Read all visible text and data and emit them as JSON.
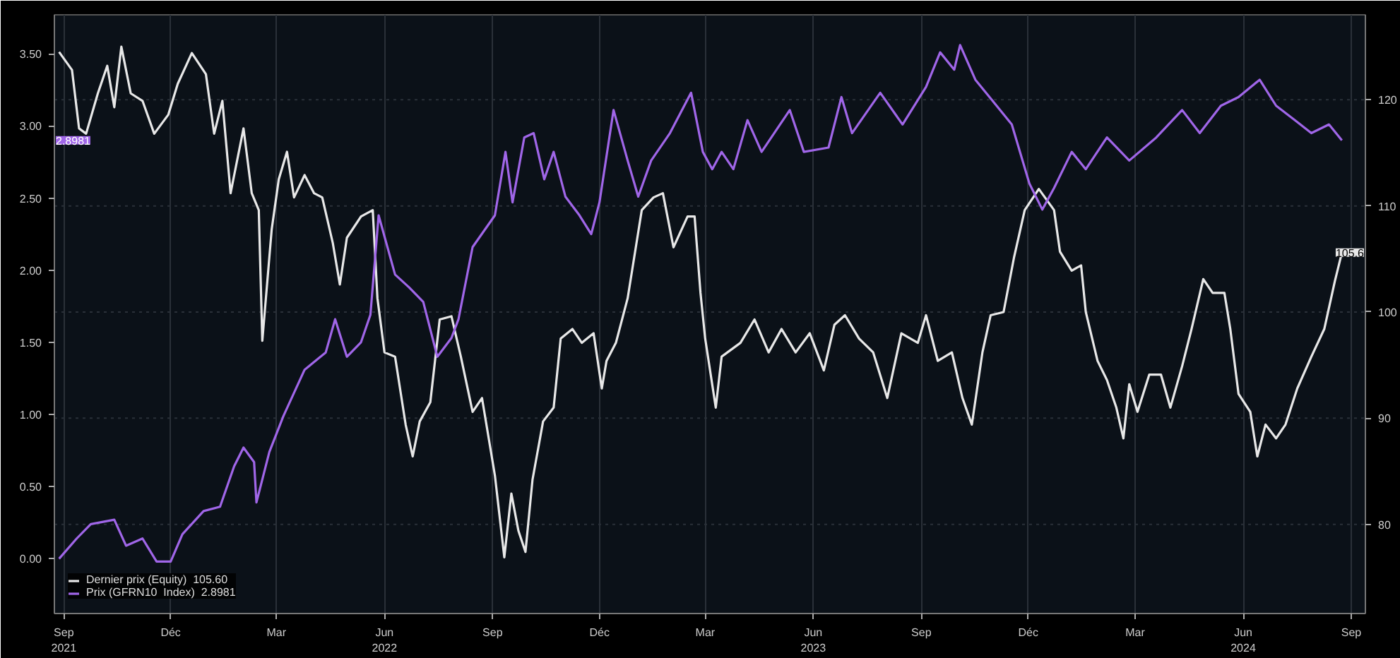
{
  "chart_data": {
    "type": "line",
    "xlim": [
      "2021-08-24",
      "2024-09-13"
    ],
    "xticks": [
      {
        "value": "2021-09-01",
        "label": "Sep\n2021"
      },
      {
        "value": "2021-12-01",
        "label": "Déc"
      },
      {
        "value": "2022-03-01",
        "label": "Mar"
      },
      {
        "value": "2022-06-01",
        "label": "Jun\n2022"
      },
      {
        "value": "2022-09-01",
        "label": "Sep"
      },
      {
        "value": "2022-12-01",
        "label": "Déc"
      },
      {
        "value": "2023-03-01",
        "label": "Mar"
      },
      {
        "value": "2023-06-01",
        "label": "Jun\n2023"
      },
      {
        "value": "2023-09-01",
        "label": "Sep"
      },
      {
        "value": "2023-12-01",
        "label": "Déc"
      },
      {
        "value": "2024-03-01",
        "label": "Mar"
      },
      {
        "value": "2024-06-01",
        "label": "Jun\n2024"
      },
      {
        "value": "2024-09-01",
        "label": "Sep"
      }
    ],
    "ylim": [
      -0.38,
      3.77
    ],
    "yticks": [
      {
        "value": 0,
        "label": "0.00"
      },
      {
        "value": 0.5,
        "label": "0.50"
      },
      {
        "value": 1,
        "label": "1.00"
      },
      {
        "value": 1.5,
        "label": "1.50"
      },
      {
        "value": 2,
        "label": "2.00"
      },
      {
        "value": 2.5,
        "label": "2.50"
      },
      {
        "value": 3,
        "label": "3.00"
      },
      {
        "value": 3.5,
        "label": "3.50"
      }
    ],
    "y2lim": [
      71.6,
      128
    ],
    "y2ticks": [
      80,
      90,
      100,
      110,
      120
    ],
    "grid": true,
    "legend": "bottom left",
    "annotations": [
      "105.6",
      "2.8981"
    ],
    "series": [
      {
        "name": "Dernier prix (Equity)  105.60",
        "color": "#e8e8e8",
        "axis": "y2",
        "x": [
          "2021-08-28",
          "2021-09-08",
          "2021-09-14",
          "2021-09-20",
          "2021-09-30",
          "2021-10-08",
          "2021-10-14",
          "2021-10-20",
          "2021-10-28",
          "2021-11-07",
          "2021-11-17",
          "2021-11-29",
          "2021-12-07",
          "2021-12-19",
          "2021-12-31",
          "2022-01-07",
          "2022-01-14",
          "2022-01-21",
          "2022-02-01",
          "2022-02-08",
          "2022-02-14",
          "2022-02-17",
          "2022-02-25",
          "2022-03-03",
          "2022-03-10",
          "2022-03-16",
          "2022-03-25",
          "2022-04-02",
          "2022-04-09",
          "2022-04-18",
          "2022-04-24",
          "2022-04-30",
          "2022-05-12",
          "2022-05-22",
          "2022-05-26",
          "2022-06-01",
          "2022-06-10",
          "2022-06-19",
          "2022-06-25",
          "2022-07-01",
          "2022-07-10",
          "2022-07-18",
          "2022-07-28",
          "2022-08-05",
          "2022-08-15",
          "2022-08-23",
          "2022-09-03",
          "2022-09-11",
          "2022-09-17",
          "2022-09-23",
          "2022-09-29",
          "2022-10-05",
          "2022-10-14",
          "2022-10-23",
          "2022-10-29",
          "2022-11-08",
          "2022-11-16",
          "2022-11-26",
          "2022-12-03",
          "2022-12-07",
          "2022-12-15",
          "2022-12-25",
          "2023-01-06",
          "2023-01-16",
          "2023-01-24",
          "2023-02-02",
          "2023-02-14",
          "2023-02-20",
          "2023-02-25",
          "2023-03-01",
          "2023-03-10",
          "2023-03-15",
          "2023-03-31",
          "2023-04-12",
          "2023-04-24",
          "2023-05-05",
          "2023-05-17",
          "2023-05-29",
          "2023-06-10",
          "2023-06-19",
          "2023-06-28",
          "2023-07-10",
          "2023-07-22",
          "2023-08-03",
          "2023-08-15",
          "2023-08-29",
          "2023-09-05",
          "2023-09-15",
          "2023-09-27",
          "2023-10-06",
          "2023-10-14",
          "2023-10-23",
          "2023-10-30",
          "2023-11-10",
          "2023-11-19",
          "2023-11-28",
          "2023-12-10",
          "2023-12-23",
          "2023-12-28",
          "2024-01-07",
          "2024-01-15",
          "2024-01-19",
          "2024-01-29",
          "2024-02-06",
          "2024-02-14",
          "2024-02-20",
          "2024-02-25",
          "2024-03-03",
          "2024-03-13",
          "2024-03-23",
          "2024-03-31",
          "2024-04-10",
          "2024-04-18",
          "2024-04-28",
          "2024-05-06",
          "2024-05-16",
          "2024-05-21",
          "2024-05-28",
          "2024-06-07",
          "2024-06-13",
          "2024-06-20",
          "2024-06-29",
          "2024-07-07",
          "2024-07-17",
          "2024-07-29",
          "2024-08-09",
          "2024-08-18",
          "2024-08-24"
        ],
        "values": [
          124.5,
          122.8,
          117.3,
          116.8,
          120.6,
          123.2,
          119.3,
          125.0,
          120.6,
          119.9,
          116.8,
          118.6,
          121.5,
          124.4,
          122.4,
          116.8,
          119.9,
          111.2,
          117.3,
          111.2,
          109.6,
          97.3,
          107.8,
          112.5,
          115.1,
          110.8,
          112.9,
          111.2,
          110.8,
          106.5,
          102.6,
          107.0,
          109.0,
          109.6,
          101.3,
          96.2,
          95.8,
          89.4,
          86.4,
          89.7,
          91.5,
          99.3,
          99.6,
          95.8,
          90.6,
          91.9,
          84.6,
          76.9,
          82.9,
          79.4,
          77.4,
          84.2,
          89.7,
          91.0,
          97.5,
          98.4,
          97.1,
          98.0,
          92.8,
          95.4,
          97.1,
          101.3,
          109.6,
          110.8,
          111.2,
          106.1,
          109.0,
          109.0,
          101.8,
          97.5,
          91.0,
          95.8,
          97.1,
          99.3,
          96.2,
          98.4,
          96.2,
          98.0,
          94.5,
          98.8,
          99.7,
          97.5,
          96.2,
          91.9,
          98.0,
          97.1,
          99.7,
          95.4,
          96.2,
          91.9,
          89.4,
          96.2,
          99.7,
          100.0,
          105.2,
          109.6,
          111.6,
          109.6,
          105.7,
          103.9,
          104.4,
          100.0,
          95.4,
          93.6,
          91.0,
          88.1,
          93.2,
          90.6,
          94.1,
          94.1,
          91.0,
          94.9,
          98.4,
          103.1,
          101.8,
          101.8,
          98.4,
          92.3,
          90.6,
          86.4,
          89.4,
          88.1,
          89.4,
          92.8,
          95.8,
          98.4,
          102.9,
          105.6
        ]
      },
      {
        "name": "Prix (GFRN10  Index)  2.8981",
        "color": "#a066e8",
        "x": [
          "2021-08-28",
          "2021-09-12",
          "2021-09-24",
          "2021-10-14",
          "2021-10-24",
          "2021-11-07",
          "2021-11-19",
          "2021-12-01",
          "2021-12-11",
          "2021-12-29",
          "2022-01-12",
          "2022-01-24",
          "2022-02-01",
          "2022-02-10",
          "2022-02-12",
          "2022-02-23",
          "2022-03-07",
          "2022-03-25",
          "2022-04-12",
          "2022-04-20",
          "2022-04-30",
          "2022-05-12",
          "2022-05-20",
          "2022-05-27",
          "2022-06-10",
          "2022-06-22",
          "2022-07-04",
          "2022-07-16",
          "2022-07-28",
          "2022-08-03",
          "2022-08-15",
          "2022-09-03",
          "2022-09-12",
          "2022-09-18",
          "2022-09-28",
          "2022-10-06",
          "2022-10-15",
          "2022-10-23",
          "2022-11-02",
          "2022-11-14",
          "2022-11-24",
          "2022-12-01",
          "2022-12-13",
          "2022-12-25",
          "2023-01-03",
          "2023-01-14",
          "2023-01-30",
          "2023-02-17",
          "2023-02-27",
          "2023-03-07",
          "2023-03-15",
          "2023-03-25",
          "2023-04-06",
          "2023-04-18",
          "2023-05-12",
          "2023-05-24",
          "2023-06-14",
          "2023-06-25",
          "2023-07-04",
          "2023-07-28",
          "2023-08-16",
          "2023-09-05",
          "2023-09-17",
          "2023-09-29",
          "2023-10-04",
          "2023-10-17",
          "2023-11-01",
          "2023-11-17",
          "2023-12-02",
          "2023-12-13",
          "2023-12-23",
          "2024-01-07",
          "2024-01-19",
          "2024-02-06",
          "2024-02-25",
          "2024-03-19",
          "2024-04-10",
          "2024-04-25",
          "2024-05-13",
          "2024-05-28",
          "2024-06-15",
          "2024-06-29",
          "2024-07-15",
          "2024-07-29",
          "2024-08-13",
          "2024-08-24"
        ],
        "values": [
          0.0,
          0.14,
          0.24,
          0.27,
          0.09,
          0.14,
          -0.02,
          -0.02,
          0.17,
          0.33,
          0.36,
          0.64,
          0.77,
          0.67,
          0.39,
          0.74,
          0.99,
          1.31,
          1.43,
          1.66,
          1.4,
          1.5,
          1.69,
          2.38,
          1.97,
          1.88,
          1.78,
          1.4,
          1.53,
          1.66,
          2.16,
          2.38,
          2.82,
          2.47,
          2.92,
          2.95,
          2.63,
          2.82,
          2.51,
          2.38,
          2.25,
          2.47,
          3.11,
          2.76,
          2.51,
          2.76,
          2.95,
          3.23,
          2.82,
          2.7,
          2.82,
          2.7,
          3.04,
          2.82,
          3.11,
          2.82,
          2.85,
          3.2,
          2.95,
          3.23,
          3.01,
          3.27,
          3.51,
          3.39,
          3.56,
          3.32,
          3.17,
          3.01,
          2.6,
          2.42,
          2.57,
          2.82,
          2.7,
          2.92,
          2.76,
          2.92,
          3.11,
          2.95,
          3.14,
          3.2,
          3.32,
          3.14,
          3.04,
          2.95,
          3.01,
          2.9
        ]
      }
    ]
  }
}
